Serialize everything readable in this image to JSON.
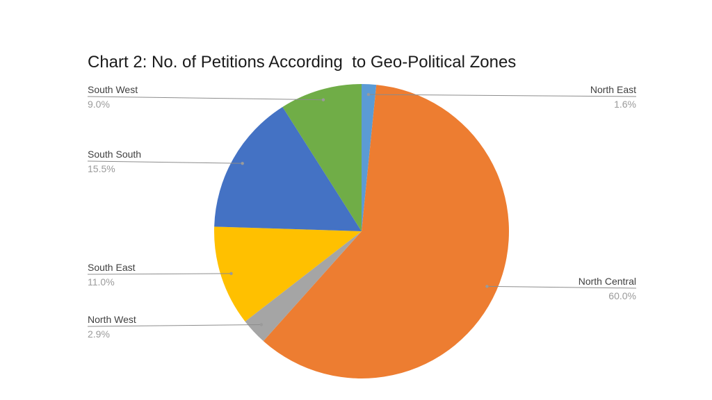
{
  "chart_data": {
    "type": "pie",
    "title": "Chart 2: No. of Petitions According  to Geo-Political Zones",
    "start_angle_deg": 0,
    "direction": "clockwise",
    "slices": [
      {
        "name": "North East",
        "value": 1.6,
        "label": "1.6%",
        "color": "#5B9BD5"
      },
      {
        "name": "North Central",
        "value": 60.0,
        "label": "60.0%",
        "color": "#ED7D31"
      },
      {
        "name": "North West",
        "value": 2.9,
        "label": "2.9%",
        "color": "#A5A5A5"
      },
      {
        "name": "South East",
        "value": 11.0,
        "label": "11.0%",
        "color": "#FFC000"
      },
      {
        "name": "South South",
        "value": 15.5,
        "label": "15.5%",
        "color": "#4472C4"
      },
      {
        "name": "South West",
        "value": 9.0,
        "label": "9.0%",
        "color": "#70AD47"
      }
    ]
  }
}
